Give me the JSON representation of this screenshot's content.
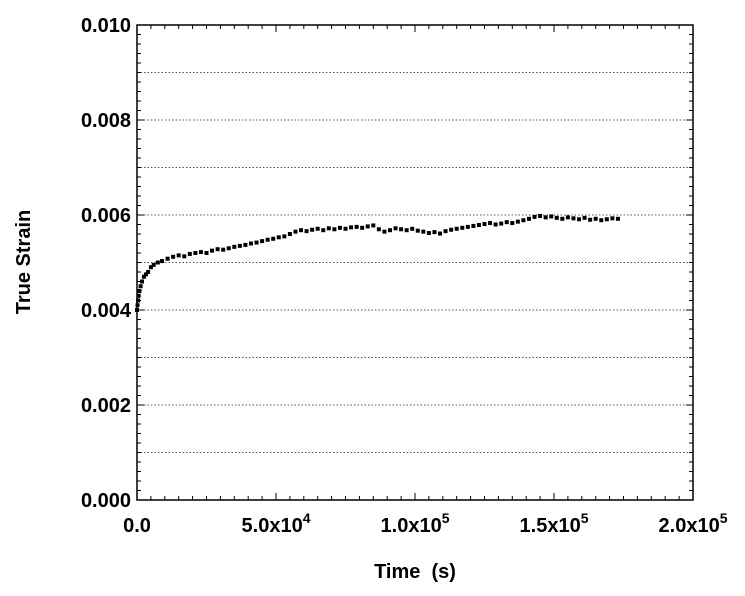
{
  "chart_data": {
    "type": "scatter",
    "title": "",
    "xlabel": "Time  (s)",
    "ylabel": "True Strain",
    "xlim": [
      0,
      200000
    ],
    "ylim": [
      0,
      0.01
    ],
    "grid": "horizontal dotted",
    "legend": "none",
    "x_ticks": [
      {
        "value": 0,
        "base": "0.0",
        "exp": ""
      },
      {
        "value": 50000,
        "base": "5.0x10",
        "exp": "4"
      },
      {
        "value": 100000,
        "base": "1.0x10",
        "exp": "5"
      },
      {
        "value": 150000,
        "base": "1.5x10",
        "exp": "5"
      },
      {
        "value": 200000,
        "base": "2.0x10",
        "exp": "5"
      }
    ],
    "y_ticks": [
      {
        "value": 0.0,
        "label": "0.000"
      },
      {
        "value": 0.002,
        "label": "0.002"
      },
      {
        "value": 0.004,
        "label": "0.004"
      },
      {
        "value": 0.006,
        "label": "0.006"
      },
      {
        "value": 0.008,
        "label": "0.008"
      },
      {
        "value": 0.01,
        "label": "0.010"
      }
    ],
    "y_gridlines": [
      0.001,
      0.002,
      0.003,
      0.004,
      0.005,
      0.006,
      0.007,
      0.008,
      0.009
    ],
    "series": [
      {
        "marker_color": "#000000",
        "points": [
          [
            0,
            0.004
          ],
          [
            200,
            0.0041
          ],
          [
            400,
            0.0042
          ],
          [
            600,
            0.0043
          ],
          [
            900,
            0.0044
          ],
          [
            1300,
            0.0045
          ],
          [
            1800,
            0.0046
          ],
          [
            2500,
            0.0047
          ],
          [
            3200,
            0.00475
          ],
          [
            4000,
            0.0048
          ],
          [
            5000,
            0.0049
          ],
          [
            6000,
            0.00495
          ],
          [
            7500,
            0.005
          ],
          [
            9000,
            0.00503
          ],
          [
            11000,
            0.00508
          ],
          [
            13000,
            0.00512
          ],
          [
            15000,
            0.00515
          ],
          [
            17000,
            0.00513
          ],
          [
            19000,
            0.00518
          ],
          [
            21000,
            0.0052
          ],
          [
            23000,
            0.00522
          ],
          [
            25000,
            0.0052
          ],
          [
            27000,
            0.00525
          ],
          [
            29000,
            0.00528
          ],
          [
            31000,
            0.00527
          ],
          [
            33000,
            0.0053
          ],
          [
            35000,
            0.00533
          ],
          [
            37000,
            0.00535
          ],
          [
            39000,
            0.00537
          ],
          [
            41000,
            0.0054
          ],
          [
            43000,
            0.00542
          ],
          [
            45000,
            0.00545
          ],
          [
            47000,
            0.00548
          ],
          [
            49000,
            0.0055
          ],
          [
            51000,
            0.00553
          ],
          [
            53000,
            0.00555
          ],
          [
            55000,
            0.0056
          ],
          [
            57000,
            0.00565
          ],
          [
            59000,
            0.00568
          ],
          [
            61000,
            0.00566
          ],
          [
            63000,
            0.00569
          ],
          [
            65000,
            0.00571
          ],
          [
            67000,
            0.00568
          ],
          [
            69000,
            0.00572
          ],
          [
            71000,
            0.0057
          ],
          [
            73000,
            0.00573
          ],
          [
            75000,
            0.00571
          ],
          [
            77000,
            0.00574
          ],
          [
            79000,
            0.00575
          ],
          [
            81000,
            0.00573
          ],
          [
            83000,
            0.00576
          ],
          [
            85000,
            0.00578
          ],
          [
            87000,
            0.0057
          ],
          [
            89000,
            0.00565
          ],
          [
            91000,
            0.00568
          ],
          [
            93000,
            0.00572
          ],
          [
            95000,
            0.0057
          ],
          [
            97000,
            0.00568
          ],
          [
            99000,
            0.00571
          ],
          [
            101000,
            0.00567
          ],
          [
            103000,
            0.00565
          ],
          [
            105000,
            0.00562
          ],
          [
            107000,
            0.00564
          ],
          [
            109000,
            0.00561
          ],
          [
            111000,
            0.00566
          ],
          [
            113000,
            0.00569
          ],
          [
            115000,
            0.00571
          ],
          [
            117000,
            0.00573
          ],
          [
            119000,
            0.00575
          ],
          [
            121000,
            0.00577
          ],
          [
            123000,
            0.00579
          ],
          [
            125000,
            0.00581
          ],
          [
            127000,
            0.00583
          ],
          [
            129000,
            0.0058
          ],
          [
            131000,
            0.00582
          ],
          [
            133000,
            0.00585
          ],
          [
            135000,
            0.00583
          ],
          [
            137000,
            0.00586
          ],
          [
            139000,
            0.00589
          ],
          [
            141000,
            0.00592
          ],
          [
            143000,
            0.00596
          ],
          [
            145000,
            0.00598
          ],
          [
            147000,
            0.00595
          ],
          [
            149000,
            0.00597
          ],
          [
            151000,
            0.00594
          ],
          [
            153000,
            0.00592
          ],
          [
            155000,
            0.00595
          ],
          [
            157000,
            0.00593
          ],
          [
            159000,
            0.00591
          ],
          [
            161000,
            0.00594
          ],
          [
            163000,
            0.0059
          ],
          [
            165000,
            0.00592
          ],
          [
            167000,
            0.00589
          ],
          [
            169000,
            0.00591
          ],
          [
            171000,
            0.00593
          ],
          [
            173000,
            0.00592
          ]
        ]
      }
    ]
  }
}
